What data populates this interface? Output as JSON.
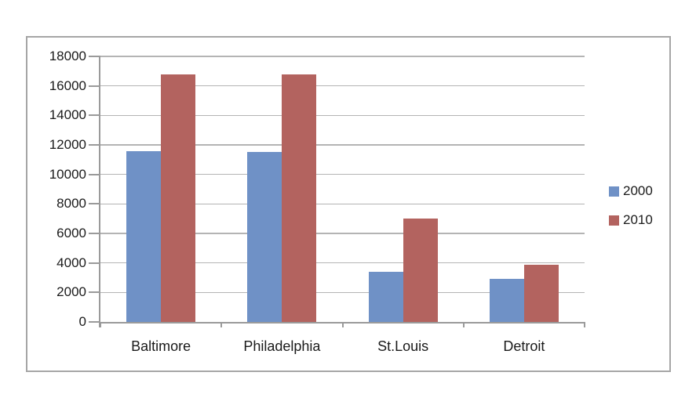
{
  "chart_data": {
    "type": "bar",
    "orientation": "vertical",
    "grouped": true,
    "title": "",
    "xlabel": "",
    "ylabel": "",
    "categories": [
      "Baltimore",
      "Philadelphia",
      "St.Louis",
      "Detroit"
    ],
    "series": [
      {
        "name": "2000",
        "color": "#6f91c6",
        "values": [
          11600,
          11500,
          3400,
          2900
        ]
      },
      {
        "name": "2010",
        "color": "#b3635f",
        "values": [
          16800,
          16800,
          7000,
          3900
        ]
      }
    ],
    "y_axis": {
      "min": 0,
      "max": 18000,
      "tick_step": 2000,
      "ticks": [
        0,
        2000,
        4000,
        6000,
        8000,
        10000,
        12000,
        14000,
        16000,
        18000
      ]
    },
    "grid": "horizontal",
    "legend_position": "right"
  }
}
